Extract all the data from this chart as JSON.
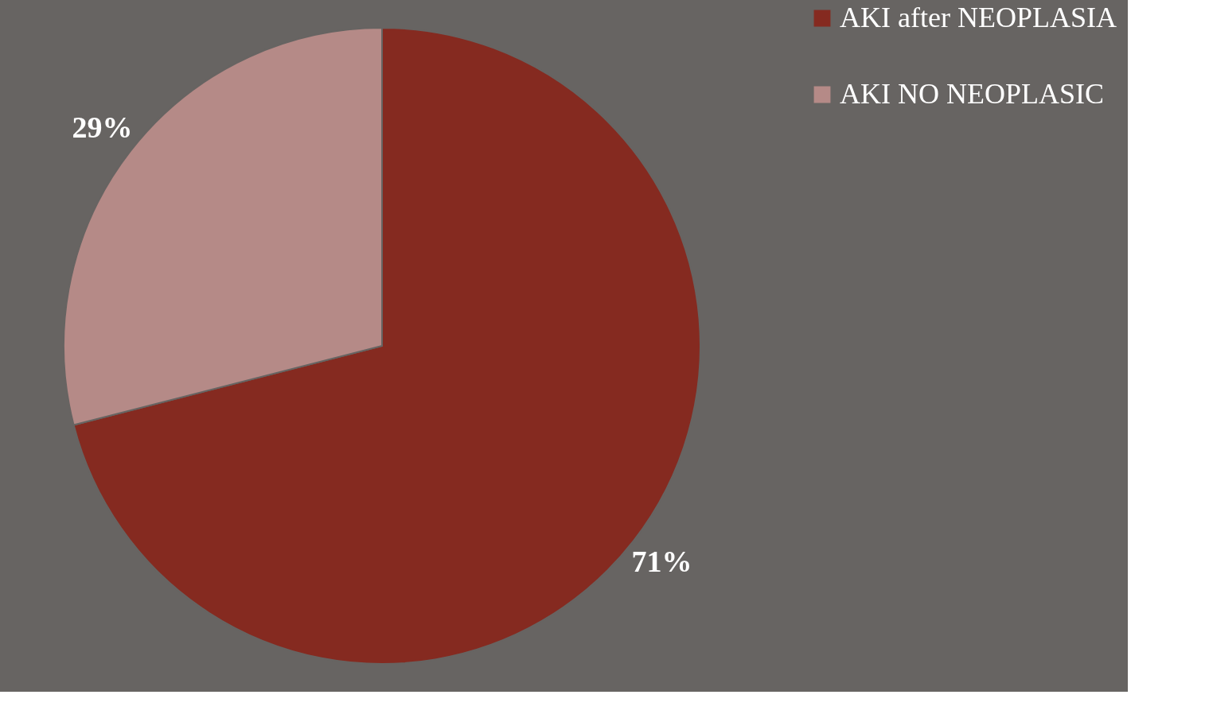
{
  "chart_data": {
    "type": "pie",
    "categories": [
      "AKI  after NEOPLASIA",
      "AKI  NO NEOPLASIC"
    ],
    "values": [
      71,
      29
    ],
    "colors": [
      "#852a20",
      "#b58a87"
    ],
    "value_labels": [
      "71%",
      "29%"
    ],
    "legend": "right"
  }
}
